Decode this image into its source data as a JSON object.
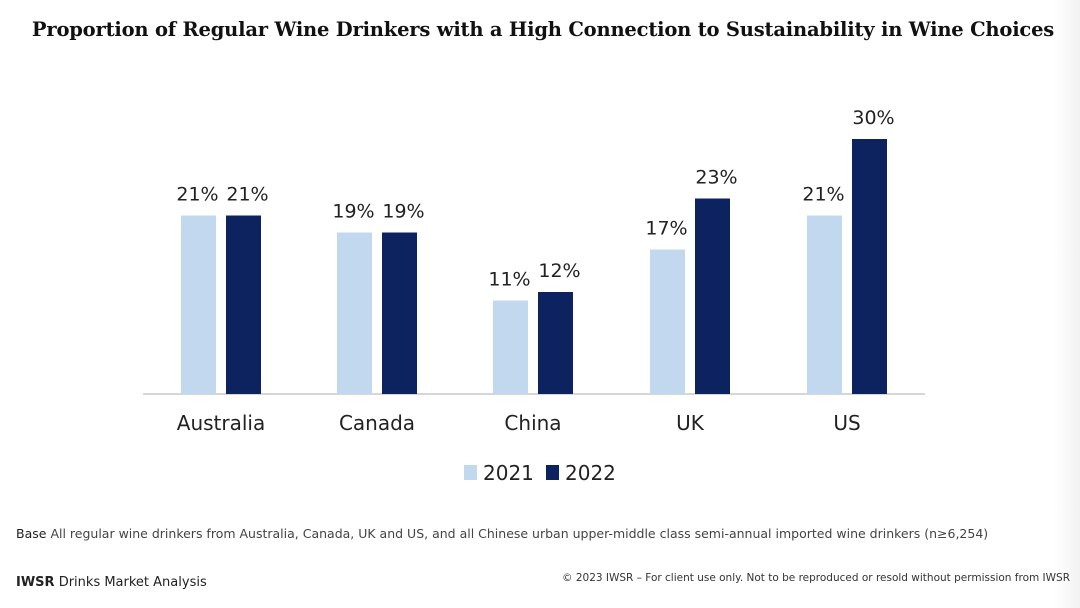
{
  "chart_data": {
    "type": "bar",
    "title": "Proportion of Regular Wine Drinkers with a High Connection to Sustainability in Wine Choices",
    "categories": [
      "Australia",
      "Canada",
      "China",
      "UK",
      "US"
    ],
    "series": [
      {
        "name": "2021",
        "values": [
          21,
          19,
          11,
          17,
          21
        ],
        "labels": [
          "21%",
          "19%",
          "11%",
          "17%",
          "21%"
        ],
        "color": "#c2d8ef"
      },
      {
        "name": "2022",
        "values": [
          21,
          19,
          12,
          23,
          30
        ],
        "labels": [
          "21%",
          "19%",
          "12%",
          "23%",
          "30%"
        ],
        "color": "#0d2360"
      }
    ],
    "xlabel": "",
    "ylabel": "",
    "ylim": [
      0,
      30
    ],
    "value_suffix": "%",
    "legend_position": "bottom-center",
    "grid": false
  },
  "footer": {
    "base_word": "Base",
    "base_text": "All regular wine drinkers from Australia, Canada, UK and US, and all Chinese urban upper-middle class semi-annual imported wine drinkers (n≥6,254)",
    "brand_name": "IWSR",
    "brand_suffix": "Drinks Market Analysis",
    "copyright": "© 2023 IWSR – For client use only. Not to be reproduced or resold without permission from IWSR"
  }
}
